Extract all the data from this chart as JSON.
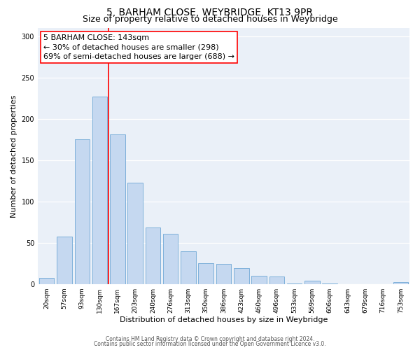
{
  "title": "5, BARHAM CLOSE, WEYBRIDGE, KT13 9PR",
  "subtitle": "Size of property relative to detached houses in Weybridge",
  "xlabel": "Distribution of detached houses by size in Weybridge",
  "ylabel": "Number of detached properties",
  "categories": [
    "20sqm",
    "57sqm",
    "93sqm",
    "130sqm",
    "167sqm",
    "203sqm",
    "240sqm",
    "276sqm",
    "313sqm",
    "350sqm",
    "386sqm",
    "423sqm",
    "460sqm",
    "496sqm",
    "533sqm",
    "569sqm",
    "606sqm",
    "643sqm",
    "679sqm",
    "716sqm",
    "753sqm"
  ],
  "values": [
    7,
    57,
    175,
    227,
    181,
    123,
    68,
    61,
    40,
    25,
    24,
    19,
    10,
    9,
    1,
    4,
    1,
    0,
    0,
    0,
    2
  ],
  "bar_color": "#c5d8f0",
  "bar_edge_color": "#6fa8d6",
  "red_line_index": 3,
  "annotation_line1": "5 BARHAM CLOSE: 143sqm",
  "annotation_line2": "← 30% of detached houses are smaller (298)",
  "annotation_line3": "69% of semi-detached houses are larger (688) →",
  "bg_color": "#eaf0f8",
  "footer_line1": "Contains HM Land Registry data © Crown copyright and database right 2024.",
  "footer_line2": "Contains public sector information licensed under the Open Government Licence v3.0.",
  "ylim": [
    0,
    310
  ],
  "title_fontsize": 10,
  "subtitle_fontsize": 9,
  "ylabel_fontsize": 8,
  "xlabel_fontsize": 8,
  "tick_fontsize": 6.5,
  "footer_fontsize": 5.5,
  "ann_fontsize": 8
}
